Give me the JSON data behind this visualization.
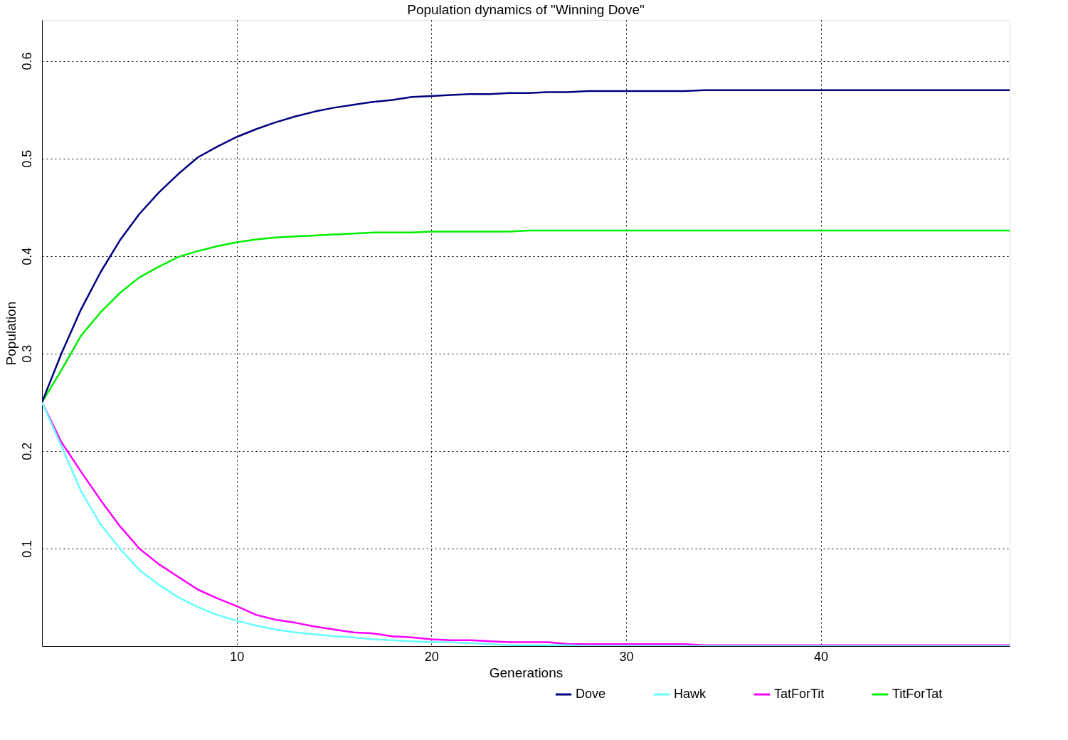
{
  "chart_data": {
    "type": "line",
    "title": "Population dynamics of \"Winning Dove\"",
    "xlabel": "Generations",
    "ylabel": "Population",
    "x": [
      0,
      1,
      2,
      3,
      4,
      5,
      6,
      7,
      8,
      9,
      10,
      11,
      12,
      13,
      14,
      15,
      16,
      17,
      18,
      19,
      20,
      21,
      22,
      23,
      24,
      25,
      26,
      27,
      28,
      29,
      30,
      31,
      32,
      33,
      34,
      35,
      36,
      37,
      38,
      39,
      40,
      41,
      42,
      43,
      44,
      45,
      46,
      47,
      48,
      49,
      49.7
    ],
    "series": [
      {
        "name": "Dove",
        "color": "#000080",
        "values": [
          0.25,
          0.3,
          0.345,
          0.383,
          0.416,
          0.443,
          0.465,
          0.484,
          0.501,
          0.512,
          0.522,
          0.53,
          0.537,
          0.543,
          0.548,
          0.552,
          0.555,
          0.558,
          0.56,
          0.563,
          0.564,
          0.565,
          0.566,
          0.566,
          0.567,
          0.567,
          0.568,
          0.568,
          0.569,
          0.569,
          0.569,
          0.569,
          0.569,
          0.569,
          0.57,
          0.57,
          0.57,
          0.57,
          0.57,
          0.57,
          0.57,
          0.57,
          0.57,
          0.57,
          0.57,
          0.57,
          0.57,
          0.57,
          0.57,
          0.57,
          0.57
        ]
      },
      {
        "name": "Hawk",
        "color": "#66ffff",
        "values": [
          0.25,
          0.205,
          0.159,
          0.125,
          0.1,
          0.078,
          0.063,
          0.05,
          0.04,
          0.032,
          0.026,
          0.021,
          0.017,
          0.014,
          0.012,
          0.01,
          0.009,
          0.007,
          0.006,
          0.005,
          0.004,
          0.004,
          0.003,
          0.002,
          0.001,
          0.001,
          0.001,
          0.001,
          0,
          0,
          0,
          0,
          0,
          0,
          0,
          0,
          0,
          0,
          0,
          0,
          0,
          0,
          0,
          0,
          0,
          0,
          0,
          0,
          0,
          0,
          0
        ]
      },
      {
        "name": "TatForTit",
        "color": "#ff00ff",
        "values": [
          0.25,
          0.209,
          0.179,
          0.15,
          0.123,
          0.1,
          0.084,
          0.071,
          0.058,
          0.049,
          0.041,
          0.032,
          0.027,
          0.024,
          0.02,
          0.017,
          0.014,
          0.013,
          0.01,
          0.009,
          0.007,
          0.006,
          0.006,
          0.005,
          0.004,
          0.004,
          0.004,
          0.002,
          0.002,
          0.002,
          0.002,
          0.002,
          0.002,
          0.002,
          0.001,
          0.001,
          0.001,
          0.001,
          0.001,
          0.001,
          0.001,
          0.001,
          0.001,
          0.001,
          0.001,
          0.001,
          0.001,
          0.001,
          0.001,
          0.001,
          0.001
        ]
      },
      {
        "name": "TitForTat",
        "color": "#00ee00",
        "values": [
          0.25,
          0.283,
          0.318,
          0.342,
          0.362,
          0.378,
          0.389,
          0.399,
          0.405,
          0.41,
          0.414,
          0.417,
          0.419,
          0.42,
          0.421,
          0.422,
          0.423,
          0.424,
          0.424,
          0.424,
          0.425,
          0.425,
          0.425,
          0.425,
          0.425,
          0.426,
          0.426,
          0.426,
          0.426,
          0.426,
          0.426,
          0.426,
          0.426,
          0.426,
          0.426,
          0.426,
          0.426,
          0.426,
          0.426,
          0.426,
          0.426,
          0.426,
          0.426,
          0.426,
          0.426,
          0.426,
          0.426,
          0.426,
          0.426,
          0.426,
          0.426
        ]
      }
    ],
    "xlim": [
      0,
      49.7
    ],
    "xticks": [
      10,
      20,
      30,
      40
    ],
    "ylim": [
      0,
      0.642
    ],
    "yticks": [
      0.1,
      0.2,
      0.3,
      0.4,
      0.5,
      0.6
    ],
    "grid": true,
    "legend": "bottom right",
    "marker": "none",
    "line_style": "solid"
  }
}
